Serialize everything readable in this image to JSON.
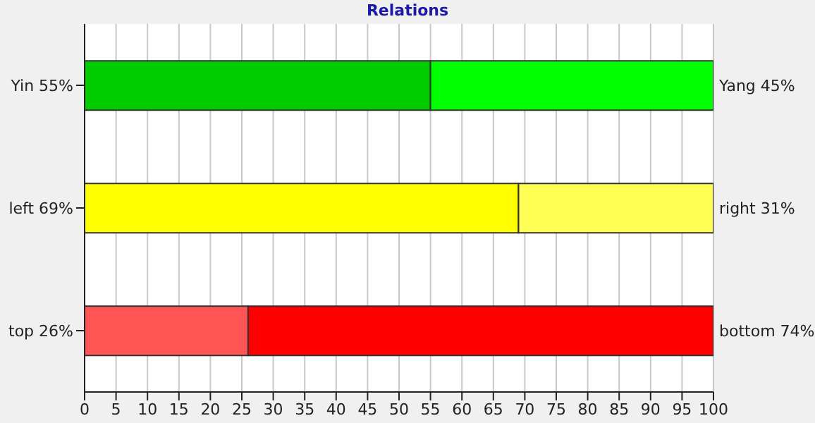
{
  "chart_data": {
    "type": "bar",
    "orientation": "horizontal",
    "stacked": true,
    "title": "Relations",
    "categories": [
      "Yin 55%",
      "left 69%",
      "top 26%"
    ],
    "series": [
      {
        "colors": [
          "#00cc00",
          "#ffff00",
          "#ff5555"
        ],
        "values": [
          55,
          69,
          26
        ]
      },
      {
        "colors": [
          "#00ff00",
          "#ffff55",
          "#ff0000"
        ],
        "values": [
          45,
          31,
          74
        ],
        "value_labels": [
          "Yang 45%",
          "right 31%",
          "bottom 74%"
        ]
      }
    ],
    "xlim": [
      0,
      100
    ],
    "xticks": [
      0,
      5,
      10,
      15,
      20,
      25,
      30,
      35,
      40,
      45,
      50,
      55,
      60,
      65,
      70,
      75,
      80,
      85,
      90,
      95,
      100
    ],
    "grid": "x",
    "legend": false
  }
}
